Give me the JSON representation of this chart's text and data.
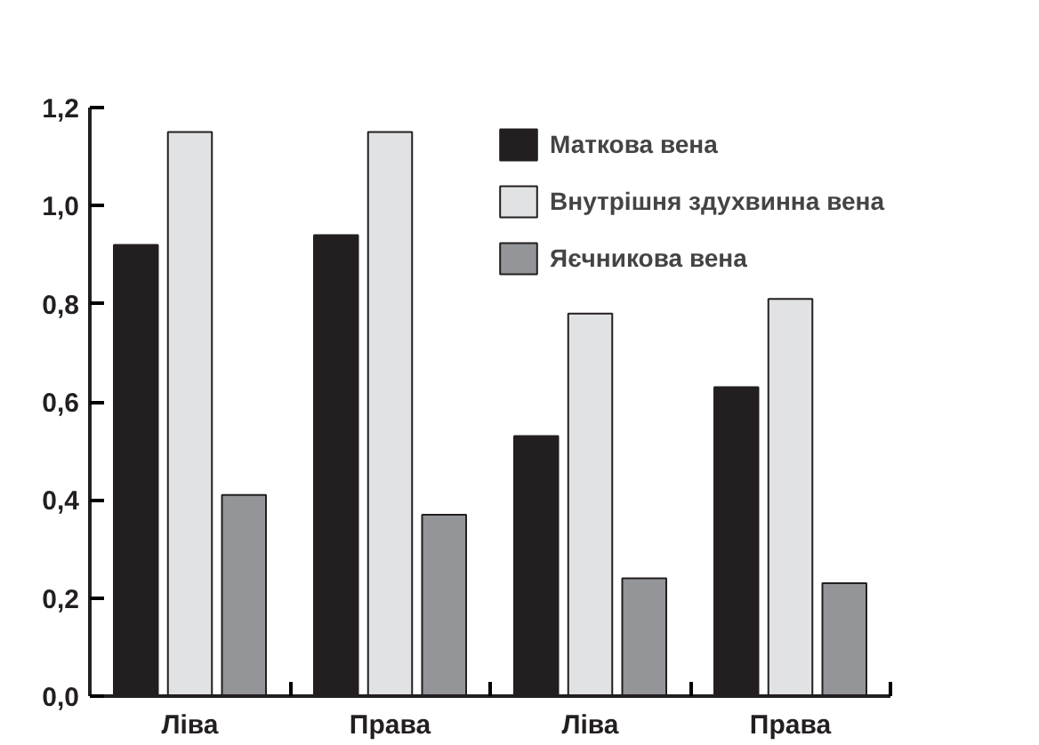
{
  "chart_data": {
    "type": "bar",
    "categories": [
      "Ліва",
      "Права",
      "Ліва",
      "Права"
    ],
    "series": [
      {
        "name": "Маткова вена",
        "color": "#231f20",
        "values": [
          0.92,
          0.94,
          0.53,
          0.63
        ]
      },
      {
        "name": "Внутрішня здухвинна вена",
        "color": "#e1e2e4",
        "values": [
          1.15,
          1.15,
          0.78,
          0.81
        ]
      },
      {
        "name": "Яєчникова вена",
        "color": "#939598",
        "values": [
          0.41,
          0.37,
          0.24,
          0.23
        ]
      }
    ],
    "ylim": [
      0,
      1.2
    ],
    "yticks": [
      {
        "value": 0,
        "label": "0,0"
      },
      {
        "value": 0.2,
        "label": "0,2"
      },
      {
        "value": 0.4,
        "label": "0,4"
      },
      {
        "value": 0.6,
        "label": "0,6"
      },
      {
        "value": 0.8,
        "label": "0,8"
      },
      {
        "value": 1.0,
        "label": "1,0"
      },
      {
        "value": 1.2,
        "label": "1,2"
      }
    ],
    "grid": false,
    "legend": "top right"
  }
}
